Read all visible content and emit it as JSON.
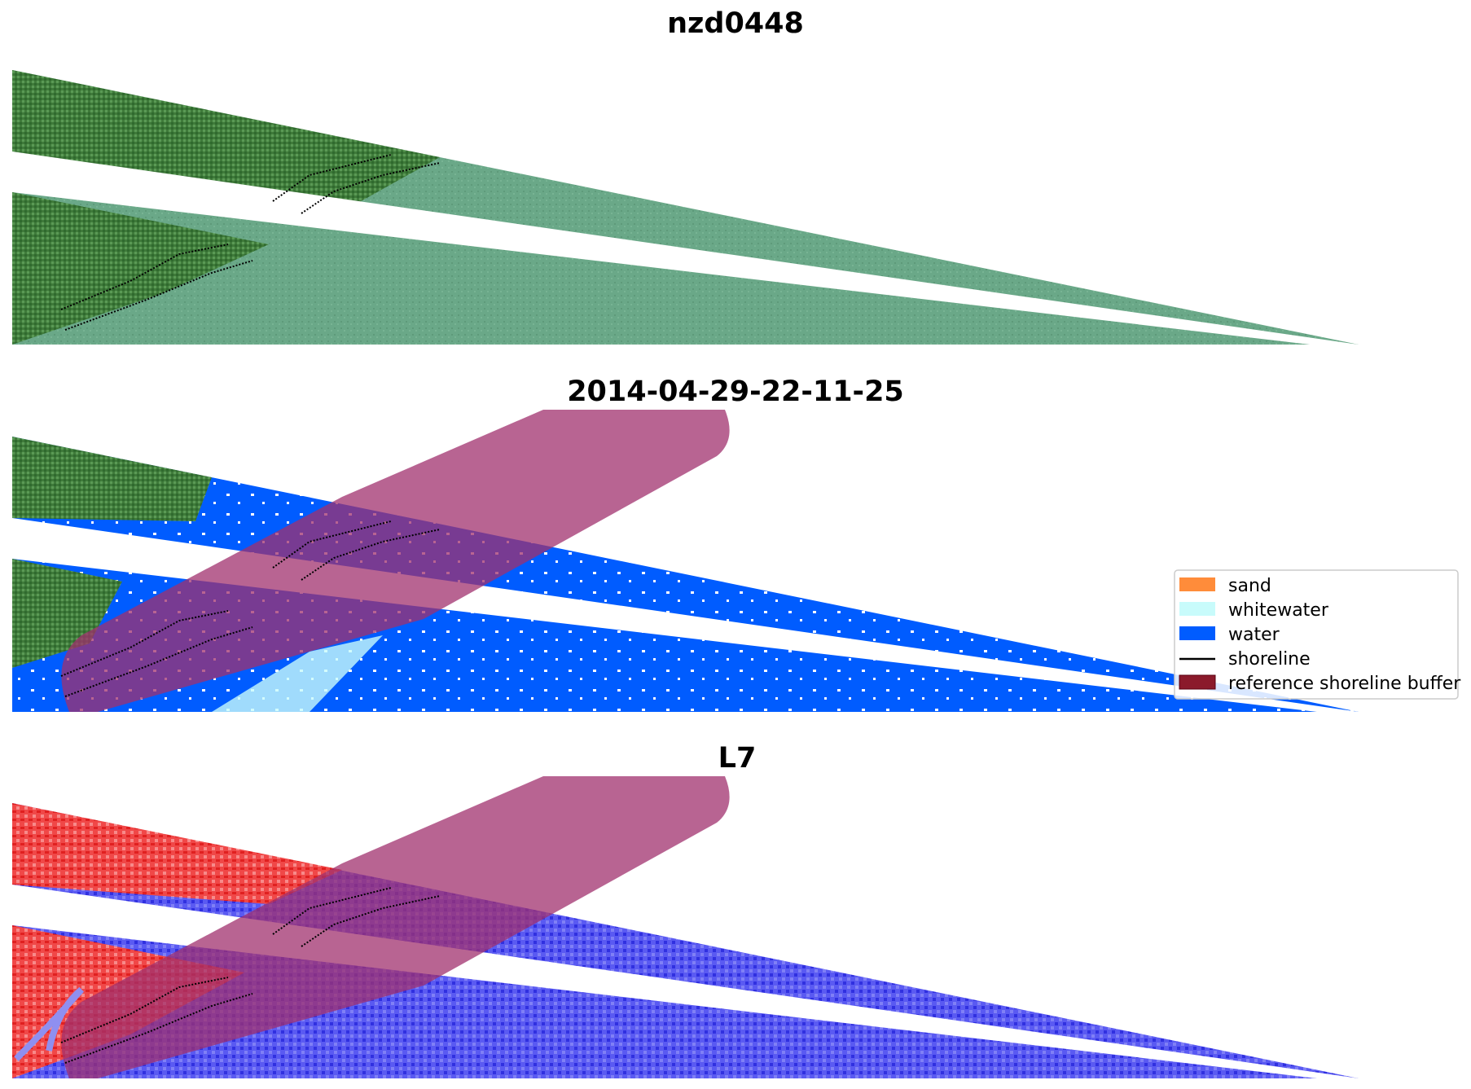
{
  "panels": [
    {
      "title": "nzd0448",
      "mode": "rgb"
    },
    {
      "title": "2014-04-29-22-11-25",
      "mode": "classified"
    },
    {
      "title": "L7",
      "mode": "index"
    }
  ],
  "legend": {
    "placement": "right of middle panel",
    "items": [
      {
        "label": "sand",
        "kind": "patch",
        "color": "#ff8c3a"
      },
      {
        "label": "whitewater",
        "kind": "patch",
        "color": "#c8fbfb"
      },
      {
        "label": "water",
        "kind": "patch",
        "color": "#005cff"
      },
      {
        "label": "shoreline",
        "kind": "line",
        "color": "#000000"
      },
      {
        "label": "reference shoreline buffer",
        "kind": "patch",
        "color": "#8b1a2b"
      }
    ]
  },
  "colors": {
    "buffer_overlay": "#a0306e",
    "water": "#005cff",
    "whitewater": "#c8fbfb",
    "rgb_land": "#3f7a3a",
    "rgb_sea": "#6aa888",
    "index_land": "#f03838",
    "index_water": "#4a4af0"
  }
}
